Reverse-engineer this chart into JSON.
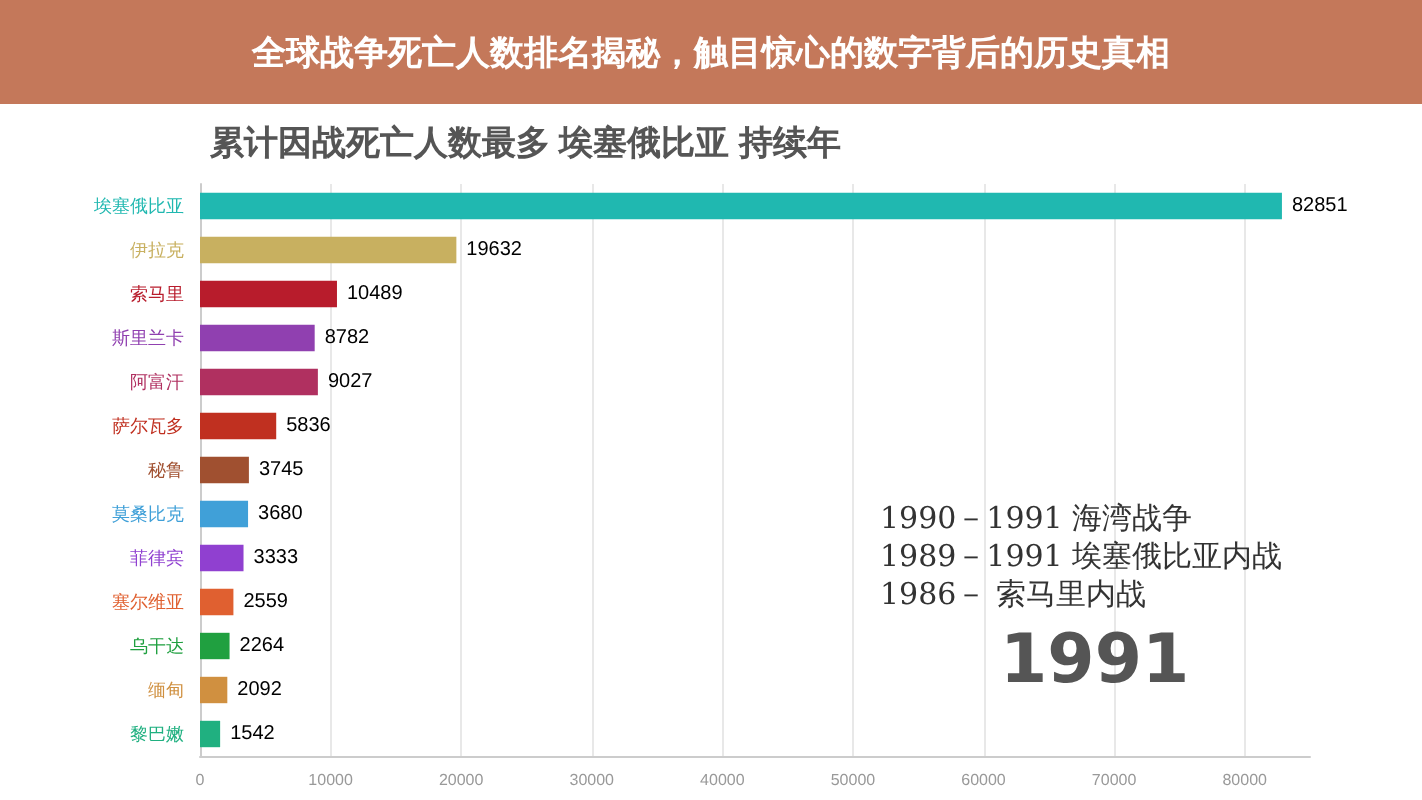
{
  "chart_data": {
    "type": "bar",
    "orientation": "horizontal",
    "title": "累计因战死亡人数最多 埃塞俄比亚 持续年",
    "subtitle": "全球战争死亡人数排名揭秘，触目惊心的数字背后的历史真相",
    "categories": [
      "埃塞俄比亚",
      "伊拉克",
      "索马里",
      "斯里兰卡",
      "阿富汗",
      "萨尔瓦多",
      "秘鲁",
      "莫桑比克",
      "菲律宾",
      "塞尔维亚",
      "乌干达",
      "缅甸",
      "黎巴嫩"
    ],
    "values": [
      82851,
      19632,
      10489,
      8782,
      9027,
      5836,
      3745,
      3680,
      3333,
      2559,
      2264,
      2092,
      1542
    ],
    "colors": [
      "#20b8b0",
      "#c8b060",
      "#b81c2c",
      "#9040b0",
      "#b03060",
      "#c03020",
      "#a05030",
      "#40a0d8",
      "#9040d0",
      "#e06030",
      "#20a040",
      "#d09040",
      "#20b080"
    ],
    "xlim": [
      0,
      85000
    ],
    "xticks": [
      0,
      10000,
      20000,
      30000,
      40000,
      50000,
      60000,
      70000,
      80000
    ],
    "data_labels": true,
    "grid": "x",
    "annotations": [
      "1990－1991  海湾战争",
      "1989－1991  埃塞俄比亚内战",
      "1986－  索马里内战",
      "1991"
    ]
  }
}
